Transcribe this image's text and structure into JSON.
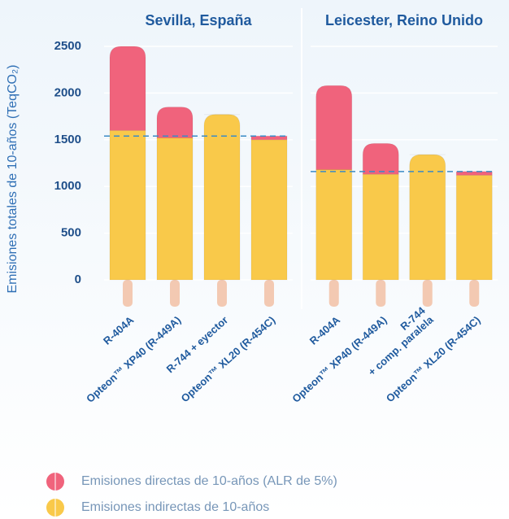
{
  "chart_data": {
    "type": "bar",
    "stacked": true,
    "y_label": "Emisiones totales de 10-años (TeqCO₂)",
    "ylim": [
      0,
      2500
    ],
    "yticks": [
      0,
      500,
      1000,
      1500,
      2000,
      2500
    ],
    "grid": true,
    "legend": "bottom",
    "panels": [
      {
        "title": "Sevilla, España",
        "categories": [
          "R-404A",
          "Opteon™ XP40 (R-449A)",
          "R-744 + eyector",
          "Opteon™ XL20 (R-454C)"
        ],
        "reference_line": 1540
      },
      {
        "title": "Leicester, Reino Unido",
        "categories": [
          "R-404A",
          "Opteon™ XP40 (R-449A)",
          [
            "R-744",
            "+ comp. paralela"
          ],
          "Opteon™ XL20 (R-454C)"
        ],
        "reference_line": 1160
      }
    ],
    "series": [
      {
        "name": "Emisiones indirectas de 10-años",
        "color": "#f9c94a",
        "values": [
          [
            1600,
            1520,
            1770,
            1500
          ],
          [
            1180,
            1130,
            1340,
            1120
          ]
        ]
      },
      {
        "name": "Emisiones directas de 10-años (ALR de 5%)",
        "color": "#f0637c",
        "values": [
          [
            900,
            330,
            0,
            40
          ],
          [
            900,
            330,
            0,
            40
          ]
        ]
      }
    ]
  }
}
